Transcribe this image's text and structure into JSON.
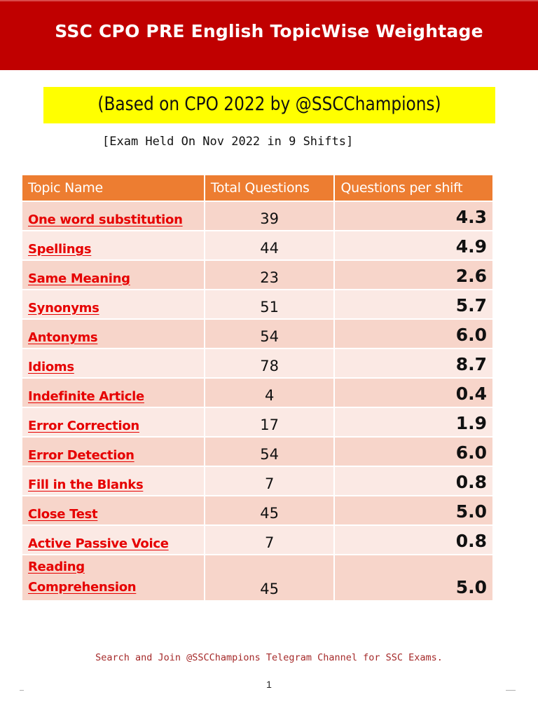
{
  "banner": {
    "title": "SSC CPO PRE English TopicWise Weightage",
    "color": "#c00000"
  },
  "subtitle": {
    "text": "(Based on CPO 2022 by @SSCChampions)",
    "highlight_color": "#ffff00"
  },
  "exam_note": "[Exam Held On Nov 2022 in 9 Shifts]",
  "table": {
    "header_color": "#ed7d31",
    "topic_color": "#e60000",
    "headers": [
      "Topic Name",
      "Total Questions",
      "Questions per shift"
    ],
    "rows": [
      {
        "topic": "One word substitution",
        "total": "39",
        "per_shift": "4.3"
      },
      {
        "topic": "Spellings",
        "total": "44",
        "per_shift": "4.9"
      },
      {
        "topic": "Same Meaning",
        "total": "23",
        "per_shift": "2.6"
      },
      {
        "topic": "Synonyms",
        "total": "51",
        "per_shift": "5.7"
      },
      {
        "topic": "Antonyms",
        "total": "54",
        "per_shift": "6.0"
      },
      {
        "topic": "Idioms",
        "total": "78",
        "per_shift": "8.7"
      },
      {
        "topic": "Indefinite Article",
        "total": "4",
        "per_shift": "0.4"
      },
      {
        "topic": "Error Correction",
        "total": "17",
        "per_shift": "1.9"
      },
      {
        "topic": "Error Detection",
        "total": "54",
        "per_shift": "6.0"
      },
      {
        "topic": "Fill in the Blanks",
        "total": "7",
        "per_shift": "0.8"
      },
      {
        "topic": "Close Test",
        "total": "45",
        "per_shift": "5.0"
      },
      {
        "topic": "Active Passive Voice",
        "total": "7",
        "per_shift": "0.8"
      },
      {
        "topic_line1": "Reading",
        "topic_line2": "Comprehension",
        "total": "45",
        "per_shift": "5.0"
      }
    ]
  },
  "footer": {
    "note": "Search and Join @SSCChampions Telegram Channel for SSC Exams.",
    "page_number": "1"
  }
}
